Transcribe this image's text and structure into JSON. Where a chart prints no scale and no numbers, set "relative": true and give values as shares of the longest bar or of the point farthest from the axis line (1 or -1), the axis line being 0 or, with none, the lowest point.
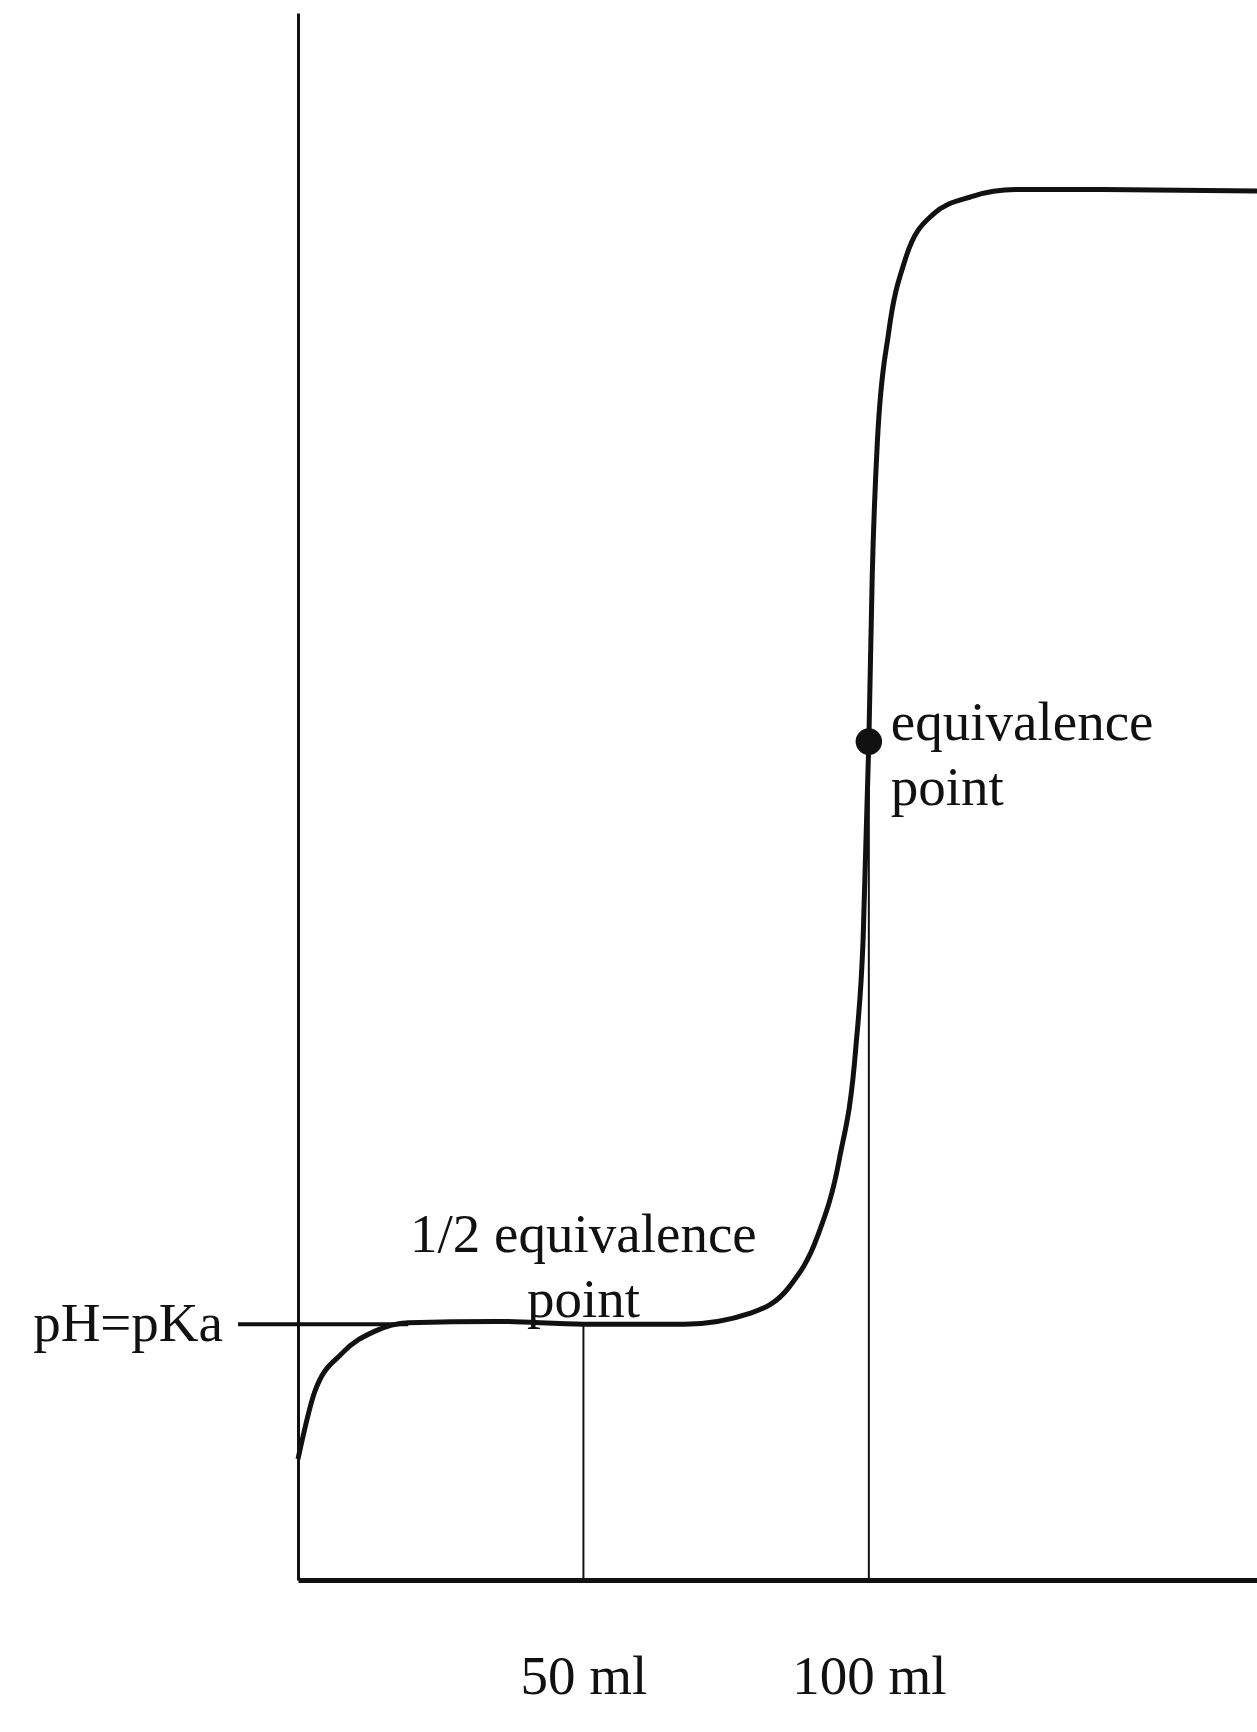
{
  "chart_data": {
    "type": "line",
    "relative": true,
    "xlim": [
      0,
      168
    ],
    "xticks": [
      {
        "value": 50,
        "label": "50 ml"
      },
      {
        "value": 100,
        "label": "100 ml"
      }
    ],
    "series": [
      {
        "color": "#111111",
        "x": [
          0,
          2.9,
          7.7,
          13.5,
          19.3,
          34.8,
          50,
          67.7,
          79.3,
          86.1,
          90.9,
          94.8,
          97.7,
          99.0,
          100,
          100.6,
          101.5,
          103.5,
          106.4,
          111.2,
          118,
          125.7,
          141,
          168
        ],
        "values": [
          0.087,
          0.135,
          0.163,
          0.179,
          0.185,
          0.186,
          0.184,
          0.184,
          0.192,
          0.211,
          0.246,
          0.302,
          0.382,
          0.461,
          0.603,
          0.723,
          0.819,
          0.898,
          0.95,
          0.982,
          0.995,
          1.0,
          1.0,
          0.999
        ]
      },
      {
        "type": "scatter",
        "color": "#111111",
        "x": [
          100
        ],
        "values": [
          0.603
        ]
      }
    ],
    "ref_lines": [
      {
        "axis": "y",
        "value": 0.184,
        "label": "pH=pKa"
      }
    ],
    "annotations": [
      {
        "text": "1/2 equivalence point",
        "x": 50,
        "y": 0.184
      },
      {
        "text": "equivalence point",
        "x": 100,
        "y": 0.603
      }
    ],
    "grid": false
  }
}
